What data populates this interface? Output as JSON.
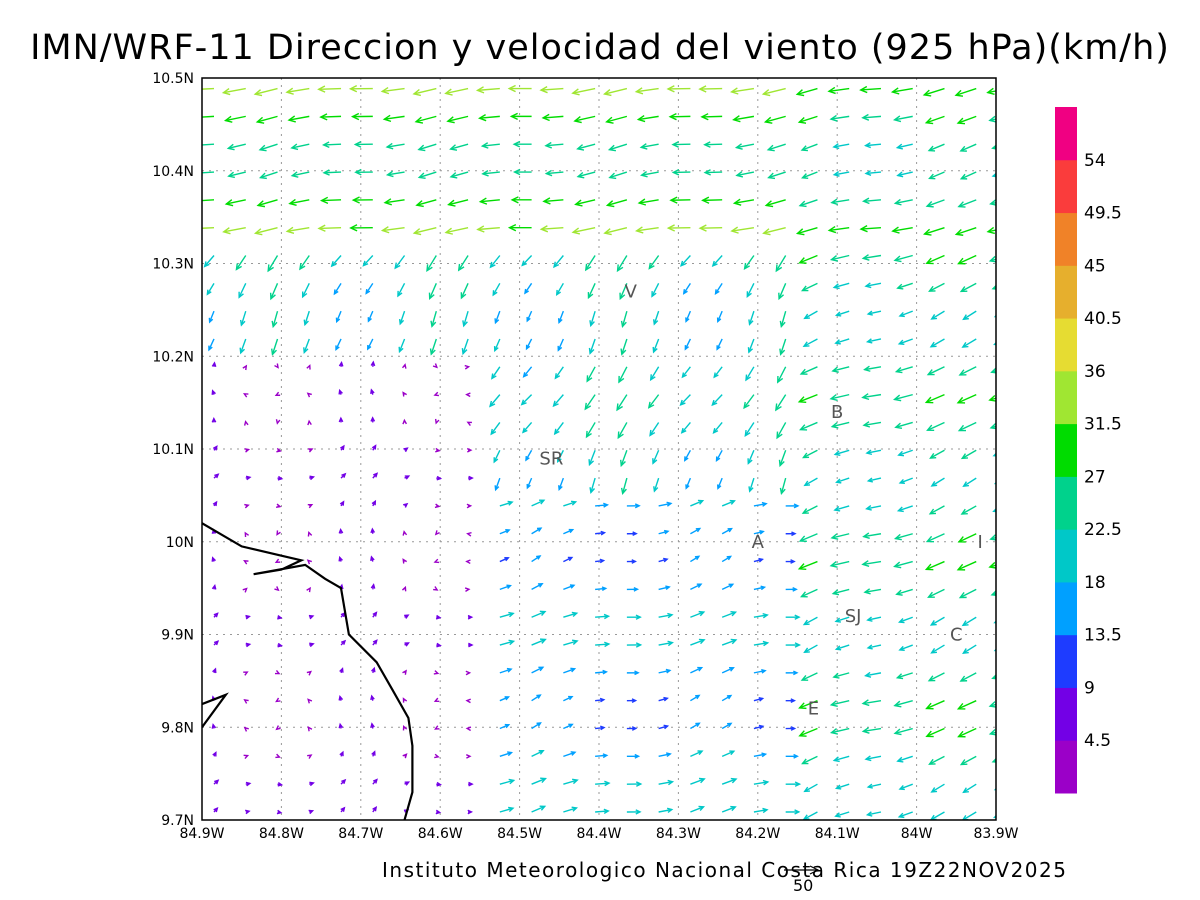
{
  "title": "IMN/WRF-11 Direccion y velocidad del viento (925 hPa)(km/h)",
  "footer": "Instituto Meteorologico Nacional Costa Rica 19Z22NOV2025",
  "reference_vector": {
    "label": "50",
    "speed_kmh": 50
  },
  "chart_data": {
    "type": "vector",
    "variable": "Direccion y velocidad del viento",
    "level": "925 hPa",
    "units": "km/h",
    "xlim": [
      -84.9,
      -83.9
    ],
    "ylim": [
      9.7,
      10.5
    ],
    "x_ticks": [
      "84.9W",
      "84.8W",
      "84.7W",
      "84.6W",
      "84.5W",
      "84.4W",
      "84.3W",
      "84.2W",
      "84.1W",
      "84W",
      "83.9W"
    ],
    "y_ticks": [
      "9.7N",
      "9.8N",
      "9.9N",
      "10N",
      "10.1N",
      "10.2N",
      "10.3N",
      "10.4N",
      "10.5N"
    ],
    "grid": true,
    "colorbar": {
      "labels": [
        "4.5",
        "9",
        "13.5",
        "18",
        "22.5",
        "27",
        "31.5",
        "36",
        "40.5",
        "45",
        "49.5",
        "54"
      ],
      "colors": [
        "#9b00c8",
        "#7300e6",
        "#1e3cff",
        "#00a0ff",
        "#00c8c8",
        "#00d28c",
        "#00dc00",
        "#a0e632",
        "#e6dc32",
        "#e6af2d",
        "#f08228",
        "#fa3c3c",
        "#f00082"
      ]
    },
    "places": [
      {
        "label": "V",
        "lon": -84.36,
        "lat": 10.27
      },
      {
        "label": "B",
        "lon": -84.1,
        "lat": 10.14
      },
      {
        "label": "SR",
        "lon": -84.46,
        "lat": 10.09
      },
      {
        "label": "A",
        "lon": -84.2,
        "lat": 10.0
      },
      {
        "label": "I",
        "lon": -83.92,
        "lat": 10.0
      },
      {
        "label": "SJ",
        "lon": -84.08,
        "lat": 9.92
      },
      {
        "label": "C",
        "lon": -83.95,
        "lat": 9.9
      },
      {
        "label": "E",
        "lon": -84.13,
        "lat": 9.82
      }
    ],
    "coastline": [
      [
        -84.9,
        10.02
      ],
      [
        -84.85,
        9.995
      ],
      [
        -84.8,
        9.985
      ],
      [
        -84.775,
        9.98
      ],
      [
        -84.8,
        9.97
      ],
      [
        -84.835,
        9.965
      ],
      [
        -84.77,
        9.975
      ],
      [
        -84.745,
        9.96
      ],
      [
        -84.725,
        9.95
      ],
      [
        -84.715,
        9.9
      ],
      [
        -84.68,
        9.87
      ],
      [
        -84.66,
        9.84
      ],
      [
        -84.64,
        9.81
      ],
      [
        -84.635,
        9.78
      ],
      [
        -84.635,
        9.73
      ],
      [
        -84.645,
        9.7
      ]
    ],
    "coastline2": [
      [
        -84.9,
        9.825
      ],
      [
        -84.87,
        9.835
      ],
      [
        -84.9,
        9.8
      ]
    ],
    "field": {
      "lon_start": -84.9,
      "lon_step": 0.04,
      "lon_count": 26,
      "lat_start": 9.7,
      "lat_step": 0.03,
      "lat_count": 27,
      "regimes": [
        {
          "name": "north",
          "lat_min": 10.32,
          "u": -28,
          "v": -4
        },
        {
          "name": "west-calm",
          "lon_max": -84.55,
          "lat_max": 10.18,
          "u": 2,
          "v": 3
        },
        {
          "name": "central",
          "lon_min": -84.55,
          "lon_max": -84.15,
          "lat_max": 10.05,
          "u": 16,
          "v": 4
        },
        {
          "name": "east",
          "lon_min": -84.15,
          "u": -22,
          "v": -8
        }
      ]
    }
  }
}
